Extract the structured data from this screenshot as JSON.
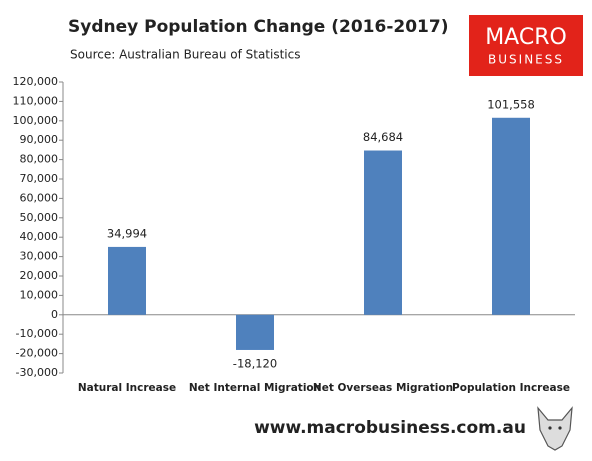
{
  "chart_data": {
    "type": "bar",
    "title": "Sydney Population Change (2016-2017)",
    "subtitle": "Source: Australian Bureau of Statistics",
    "categories": [
      "Natural Increase",
      "Net Internal Migration",
      "Net Overseas Migration",
      "Population Increase"
    ],
    "values": [
      34994,
      -18120,
      84684,
      101558
    ],
    "value_labels": [
      "34,994",
      "-18,120",
      "84,684",
      "101,558"
    ],
    "color": "#4f81bd",
    "ylim": [
      -30000,
      120000
    ],
    "yticks": [
      {
        "value": -30000,
        "label": "-30,000"
      },
      {
        "value": -20000,
        "label": "-20,000"
      },
      {
        "value": -10000,
        "label": "-10,000"
      },
      0,
      {
        "value": 10000,
        "label": "10,000"
      },
      {
        "value": 20000,
        "label": "20,000"
      },
      {
        "value": 30000,
        "label": "30,000"
      },
      {
        "value": 40000,
        "label": "40,000"
      },
      {
        "value": 50000,
        "label": "50,000"
      },
      {
        "value": 60000,
        "label": "60,000"
      },
      {
        "value": 70000,
        "label": "70,000"
      },
      {
        "value": 80000,
        "label": "80,000"
      },
      {
        "value": 90000,
        "label": "90,000"
      },
      {
        "value": 100000,
        "label": "100,000"
      },
      {
        "value": 110000,
        "label": "110,000"
      },
      {
        "value": 120000,
        "label": "120,000"
      }
    ],
    "grid": false
  },
  "logo": {
    "line1": "MACRO",
    "line2": "BUSINESS"
  },
  "footer": "www.macrobusiness.com.au"
}
